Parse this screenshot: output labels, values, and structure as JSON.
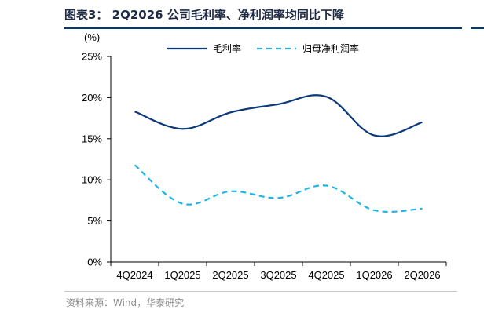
{
  "figure": {
    "title": "图表3：  2Q2026 公司毛利率、净利润率均同比下降",
    "source": "资料来源：Wind，华泰研究"
  },
  "chart_data": {
    "type": "line",
    "categories": [
      "4Q2024",
      "1Q2025",
      "2Q2025",
      "3Q2025",
      "4Q2025",
      "1Q2026",
      "2Q2026"
    ],
    "ylabel": "(%)",
    "ylim": [
      0,
      25
    ],
    "yticks": [
      "0%",
      "5%",
      "10%",
      "15%",
      "20%",
      "25%"
    ],
    "grid": false,
    "legend": "top-center",
    "series": [
      {
        "name": "毛利率",
        "values": [
          18.3,
          16.2,
          18.2,
          19.2,
          20.1,
          15.4,
          17.0
        ],
        "color": "#0b3a7a",
        "style": "solid"
      },
      {
        "name": "归母净利润率",
        "values": [
          11.8,
          7.1,
          8.6,
          7.8,
          9.3,
          6.3,
          6.5
        ],
        "color": "#1fb5e8",
        "style": "dashed"
      }
    ]
  }
}
